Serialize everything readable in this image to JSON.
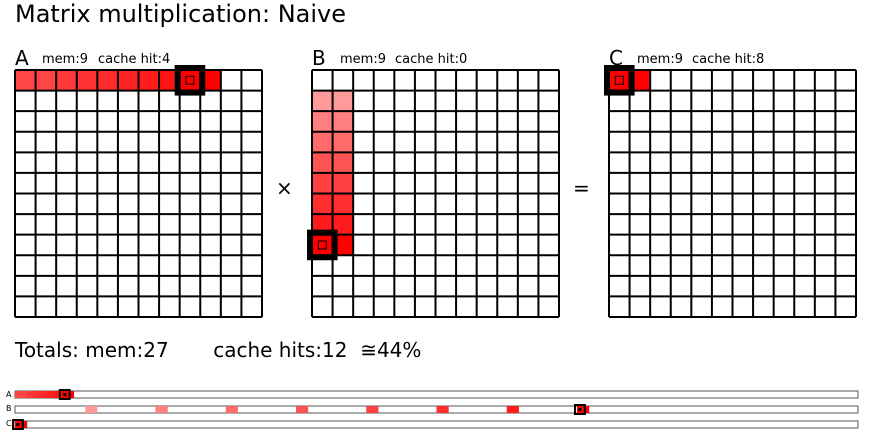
{
  "title": "Matrix multiplication: Naive",
  "highlight_color": "#ff0000",
  "matrices": [
    {
      "name": "A",
      "mem_label": "mem:9",
      "cache_label": "cache hit:4",
      "grid_size": 12,
      "highlighted_cells": [
        {
          "row": 0,
          "col": 0,
          "intensity": 0.75
        },
        {
          "row": 0,
          "col": 1,
          "intensity": 0.75
        },
        {
          "row": 0,
          "col": 2,
          "intensity": 0.8
        },
        {
          "row": 0,
          "col": 3,
          "intensity": 0.82
        },
        {
          "row": 0,
          "col": 4,
          "intensity": 0.85
        },
        {
          "row": 0,
          "col": 5,
          "intensity": 0.88
        },
        {
          "row": 0,
          "col": 6,
          "intensity": 0.9
        },
        {
          "row": 0,
          "col": 7,
          "intensity": 0.93
        },
        {
          "row": 0,
          "col": 8,
          "intensity": 1.0
        },
        {
          "row": 0,
          "col": 9,
          "intensity": 1.0
        }
      ],
      "cursor": {
        "row": 0,
        "col": 8
      }
    },
    {
      "name": "B",
      "mem_label": "mem:9",
      "cache_label": "cache hit:0",
      "grid_size": 12,
      "highlighted_cells": [
        {
          "row": 1,
          "col": 0,
          "intensity": 0.45
        },
        {
          "row": 1,
          "col": 1,
          "intensity": 0.45
        },
        {
          "row": 2,
          "col": 0,
          "intensity": 0.55
        },
        {
          "row": 2,
          "col": 1,
          "intensity": 0.55
        },
        {
          "row": 3,
          "col": 0,
          "intensity": 0.62
        },
        {
          "row": 3,
          "col": 1,
          "intensity": 0.62
        },
        {
          "row": 4,
          "col": 0,
          "intensity": 0.7
        },
        {
          "row": 4,
          "col": 1,
          "intensity": 0.7
        },
        {
          "row": 5,
          "col": 0,
          "intensity": 0.77
        },
        {
          "row": 5,
          "col": 1,
          "intensity": 0.77
        },
        {
          "row": 6,
          "col": 0,
          "intensity": 0.84
        },
        {
          "row": 6,
          "col": 1,
          "intensity": 0.84
        },
        {
          "row": 7,
          "col": 0,
          "intensity": 0.9
        },
        {
          "row": 7,
          "col": 1,
          "intensity": 0.9
        },
        {
          "row": 8,
          "col": 0,
          "intensity": 1.0
        },
        {
          "row": 8,
          "col": 1,
          "intensity": 1.0
        }
      ],
      "cursor": {
        "row": 8,
        "col": 0
      }
    },
    {
      "name": "C",
      "mem_label": "mem:9",
      "cache_label": "cache hit:8",
      "grid_size": 12,
      "highlighted_cells": [
        {
          "row": 0,
          "col": 0,
          "intensity": 1.0
        },
        {
          "row": 0,
          "col": 1,
          "intensity": 1.0
        }
      ],
      "cursor": {
        "row": 0,
        "col": 0
      }
    }
  ],
  "operators": {
    "multiply": "×",
    "equals": "="
  },
  "totals": {
    "mem_text": "Totals: mem:27",
    "cache_text": "cache hits:12",
    "percent_text": "≅44%"
  },
  "strips": [
    {
      "label": "A",
      "length": 144,
      "cells": [
        {
          "index": 0,
          "intensity": 0.75
        },
        {
          "index": 1,
          "intensity": 0.75
        },
        {
          "index": 2,
          "intensity": 0.8
        },
        {
          "index": 3,
          "intensity": 0.82
        },
        {
          "index": 4,
          "intensity": 0.85
        },
        {
          "index": 5,
          "intensity": 0.88
        },
        {
          "index": 6,
          "intensity": 0.9
        },
        {
          "index": 7,
          "intensity": 0.93
        },
        {
          "index": 8,
          "intensity": 1.0
        },
        {
          "index": 9,
          "intensity": 1.0
        }
      ],
      "cursor": 8
    },
    {
      "label": "B",
      "length": 144,
      "cells": [
        {
          "index": 12,
          "intensity": 0.45
        },
        {
          "index": 13,
          "intensity": 0.45
        },
        {
          "index": 24,
          "intensity": 0.55
        },
        {
          "index": 25,
          "intensity": 0.55
        },
        {
          "index": 36,
          "intensity": 0.62
        },
        {
          "index": 37,
          "intensity": 0.62
        },
        {
          "index": 48,
          "intensity": 0.7
        },
        {
          "index": 49,
          "intensity": 0.7
        },
        {
          "index": 60,
          "intensity": 0.77
        },
        {
          "index": 61,
          "intensity": 0.77
        },
        {
          "index": 72,
          "intensity": 0.84
        },
        {
          "index": 73,
          "intensity": 0.84
        },
        {
          "index": 84,
          "intensity": 0.9
        },
        {
          "index": 85,
          "intensity": 0.9
        },
        {
          "index": 96,
          "intensity": 1.0
        },
        {
          "index": 97,
          "intensity": 1.0
        }
      ],
      "cursor": 96
    },
    {
      "label": "C",
      "length": 144,
      "cells": [
        {
          "index": 0,
          "intensity": 1.0
        },
        {
          "index": 1,
          "intensity": 1.0
        }
      ],
      "cursor": 0
    }
  ]
}
